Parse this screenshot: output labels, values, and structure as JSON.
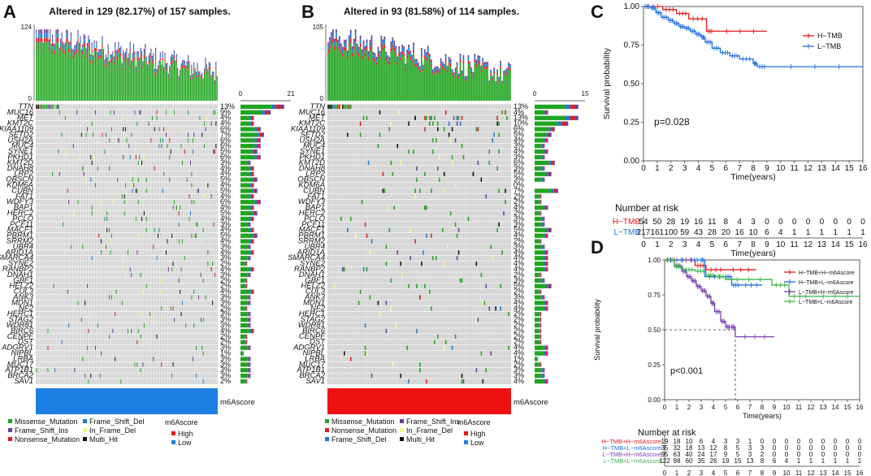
{
  "panels": {
    "a": {
      "letter": "A",
      "title": "Altered in 129 (82.17%) of 157 samples.",
      "top_max": "124",
      "side_axis": [
        "0",
        "21"
      ],
      "group_label": "m6Ascore",
      "group_color": "#1a7fe0",
      "genes": [
        "TTN",
        "MUC16",
        "MET",
        "KMT2C",
        "KIAA1109",
        "SETD2",
        "USH2A",
        "MUC4",
        "SYNE1",
        "PKHD1",
        "KMT2D",
        "DNAH8",
        "LRP2",
        "OBSCN",
        "KDM6A",
        "CUBN",
        "FAT1",
        "WDFY3",
        "BAP1",
        "HERC2",
        "PCLO",
        "PCF11",
        "MACF1",
        "PBRM1",
        "SRRM2",
        "UBR4",
        "ARID1A",
        "SMARCA4",
        "SYNE2",
        "RANBP2",
        "DNAH1",
        "GBF1",
        "HELZ2",
        "CUL3",
        "ANK3",
        "MDN1",
        "NF2",
        "HERC1",
        "STAG2",
        "WDR81",
        "BIRC6",
        "CENPF",
        "DST",
        "ADGRV1",
        "NIPBL",
        "LRBA",
        "MUC17",
        "ATP1B1",
        "BRCA2",
        "SAV1"
      ],
      "percents": [
        "13%",
        "9%",
        "4%",
        "4%",
        "6%",
        "7%",
        "6%",
        "6%",
        "5%",
        "6%",
        "3%",
        "4%",
        "4%",
        "5%",
        "4%",
        "5%",
        "4%",
        "6%",
        "4%",
        "5%",
        "4%",
        "3%",
        "4%",
        "5%",
        "4%",
        "3%",
        "4%",
        "3%",
        "2%",
        "4%",
        "3%",
        "2%",
        "2%",
        "4%",
        "3%",
        "3%",
        "2%",
        "3%",
        "3%",
        "3%",
        "4%",
        "2%",
        "2%",
        "3%",
        "1%",
        "3%",
        "3%",
        "3%",
        "3%",
        "2%"
      ]
    },
    "b": {
      "letter": "B",
      "title": "Altered in 93 (81.58%) of 114 samples.",
      "top_max": "105",
      "side_axis": [
        "0",
        "15"
      ],
      "group_label": "m6Ascore",
      "group_color": "#ee1111",
      "genes": [
        "TTN",
        "MUC16",
        "MET",
        "KMT2C",
        "KIAA1109",
        "SETD2",
        "USH2A",
        "MUC4",
        "SYNE1",
        "PKHD1",
        "KMT2D",
        "DNAH8",
        "LRP2",
        "OBSCN",
        "KDM6A",
        "CUBN",
        "FAT1",
        "WDFY3",
        "BAP1",
        "HERC2",
        "PCLO",
        "PCF11",
        "MACF1",
        "PBRM1",
        "SRRM2",
        "UBR4",
        "ARID1A",
        "SMARCA4",
        "SYNE2",
        "RANBP2",
        "DNAH1",
        "GBF1",
        "HELZ2",
        "CUL3",
        "ANK3",
        "MDN1",
        "NF2",
        "HERC1",
        "STAG2",
        "WDR81",
        "BIRC6",
        "CENPF",
        "DST",
        "ADGRV1",
        "NIPBL",
        "LRBA",
        "MUC17",
        "ATP1B1",
        "BRCA2",
        "SAV1"
      ],
      "percents": [
        "13%",
        "4%",
        "13%",
        "10%",
        "6%",
        "5%",
        "4%",
        "3%",
        "4%",
        "3%",
        "6%",
        "3%",
        "5%",
        "3%",
        "0%",
        "7%",
        "2%",
        "2%",
        "4%",
        "2%",
        "3%",
        "3%",
        "5%",
        "4%",
        "2%",
        "3%",
        "4%",
        "4%",
        "4%",
        "4%",
        "2%",
        "3%",
        "5%",
        "2%",
        "3%",
        "4%",
        "4%",
        "2%",
        "2%",
        "2%",
        "2%",
        "2%",
        "2%",
        "4%",
        "4%",
        "1%",
        "2%",
        "3%",
        "3%",
        "4%"
      ]
    },
    "c": {
      "letter": "C"
    },
    "d": {
      "letter": "D"
    }
  },
  "legends": {
    "a": {
      "mutation_types": [
        "Missense_Mutation",
        "Frame_Shift_Del",
        "Frame_Shift_Ins",
        "In_Frame_Del",
        "Nonsense_Mutation",
        "Multi_Hit"
      ],
      "group_title": "m6Ascore",
      "group_items": [
        "High",
        "Low"
      ]
    },
    "b": {
      "mutation_types": [
        "Missense_Mutation",
        "Frame_Shift_Ins",
        "Nonsense_Mutation",
        "In_Frame_Del",
        "Frame_Shift_Del",
        "Multi_Hit"
      ],
      "group_title": "m6Ascore",
      "group_items": [
        "High",
        "Low"
      ]
    }
  },
  "colors": {
    "missense": "#1fa51f",
    "frame_shift_del": "#1f78c8",
    "frame_shift_ins": "#6a3d9a",
    "in_frame_del": "#f5f58a",
    "nonsense": "#e31a1c",
    "multi_hit": "#111111",
    "background": "#cfcfcf",
    "high": "#ee1111",
    "low": "#1a7fe0",
    "h_tmb": "#e31a1c",
    "l_tmb": "#1f6fe0",
    "d_hh": "#e31a1c",
    "d_hl": "#1f6fe0",
    "d_lh": "#7b3fb0",
    "d_ll": "#3cb34a"
  },
  "chart_data": [
    {
      "type": "heatmap",
      "title": "Altered in 129 (82.17%) of 157 samples.",
      "samples": 157,
      "altered": 129,
      "top_axis_max": 124,
      "side_axis_max": 21,
      "rows": "genes listed in panels.a.genes",
      "group": "m6Ascore Low"
    },
    {
      "type": "heatmap",
      "title": "Altered in 93 (81.58%) of 114 samples.",
      "samples": 114,
      "altered": 93,
      "top_axis_max": 105,
      "side_axis_max": 15,
      "rows": "genes listed in panels.b.genes",
      "group": "m6Ascore High"
    },
    {
      "type": "line",
      "title": "",
      "xlabel": "Time(years)",
      "ylabel": "Survival probability",
      "xlim": [
        0,
        16
      ],
      "ylim": [
        0,
        1
      ],
      "x_ticks": [
        "0",
        "1",
        "2",
        "3",
        "4",
        "5",
        "6",
        "7",
        "8",
        "9",
        "10",
        "11",
        "12",
        "13",
        "14",
        "15",
        "16"
      ],
      "y_ticks": [
        "0.00",
        "0.25",
        "0.50",
        "0.75",
        "1.00"
      ],
      "annotation": "p=0.028",
      "series": [
        {
          "name": "H−TMB",
          "x": [
            0,
            1.4,
            2.4,
            3.3,
            4.6,
            5.1,
            9.0
          ],
          "y": [
            1.0,
            0.98,
            0.955,
            0.92,
            0.84,
            0.84,
            0.84
          ]
        },
        {
          "name": "L−TMB",
          "x": [
            0,
            0.5,
            0.9,
            1.3,
            1.8,
            2.2,
            2.6,
            3.0,
            3.4,
            3.8,
            4.2,
            4.5,
            5.0,
            5.6,
            6.3,
            7.0,
            8.0,
            8.3,
            9.0,
            16.0
          ],
          "y": [
            1.0,
            0.99,
            0.96,
            0.93,
            0.91,
            0.89,
            0.87,
            0.86,
            0.84,
            0.82,
            0.8,
            0.77,
            0.73,
            0.7,
            0.68,
            0.66,
            0.63,
            0.61,
            0.61,
            0.61
          ]
        }
      ],
      "risk_table": {
        "title": "Number at risk",
        "rows": [
          {
            "name": "H−TMB",
            "values": [
              "54",
              "50",
              "28",
              "19",
              "16",
              "11",
              "8",
              "4",
              "3",
              "0",
              "0",
              "0",
              "0",
              "0",
              "0",
              "0",
              "0"
            ]
          },
          {
            "name": "L−TMB",
            "values": [
              "217",
              "161",
              "100",
              "59",
              "43",
              "28",
              "20",
              "16",
              "10",
              "6",
              "4",
              "1",
              "1",
              "1",
              "1",
              "1",
              "1"
            ]
          }
        ],
        "xlabel": "Time(years)"
      }
    },
    {
      "type": "line",
      "xlabel": "Time(years)",
      "ylabel": "Survival probability",
      "xlim": [
        0,
        16
      ],
      "ylim": [
        0,
        1
      ],
      "x_ticks": [
        "0",
        "1",
        "2",
        "3",
        "4",
        "5",
        "6",
        "7",
        "8",
        "9",
        "10",
        "11",
        "12",
        "13",
        "14",
        "15",
        "16"
      ],
      "y_ticks": [
        "0.00",
        "0.25",
        "0.50",
        "0.75",
        "1.00"
      ],
      "annotation": "p<0.001",
      "median_line": {
        "x": 5.8,
        "y": 0.5
      },
      "series": [
        {
          "name": "H−TMB+H−m6Ascore",
          "x": [
            0,
            1.0,
            2.5,
            3.4,
            5.0,
            7.5
          ],
          "y": [
            1.0,
            1.0,
            0.96,
            0.93,
            0.93,
            0.93
          ]
        },
        {
          "name": "H−TMB+L−m6Ascore",
          "x": [
            0,
            2.0,
            2.9,
            3.3,
            4.9,
            5.5,
            6.2,
            8.0
          ],
          "y": [
            1.0,
            1.0,
            1.0,
            0.88,
            0.88,
            0.82,
            0.82,
            0.82
          ]
        },
        {
          "name": "L−TMB+H−m6Ascore",
          "x": [
            0,
            0.8,
            1.4,
            1.8,
            2.2,
            2.6,
            3.0,
            3.4,
            3.8,
            4.1,
            4.6,
            5.0,
            5.4,
            5.8,
            9.0
          ],
          "y": [
            1.0,
            0.96,
            0.92,
            0.88,
            0.85,
            0.81,
            0.78,
            0.74,
            0.69,
            0.63,
            0.56,
            0.52,
            0.52,
            0.45,
            0.45
          ]
        },
        {
          "name": "L−TMB+L−m6Ascore",
          "x": [
            0,
            0.8,
            1.5,
            2.5,
            3.4,
            4.2,
            5.0,
            8.8,
            10.2,
            12.0,
            16.0
          ],
          "y": [
            1.0,
            0.95,
            0.93,
            0.92,
            0.89,
            0.88,
            0.86,
            0.82,
            0.74,
            0.74,
            0.74
          ]
        }
      ],
      "risk_table": {
        "title": "Number at risk",
        "rows": [
          {
            "name": "H−TMB+H−m6Ascore",
            "values": [
              "19",
              "18",
              "10",
              "6",
              "4",
              "3",
              "3",
              "1",
              "0",
              "0",
              "0",
              "0",
              "0",
              "0",
              "0",
              "0",
              "0"
            ]
          },
          {
            "name": "H−TMB+L−m6Ascore",
            "values": [
              "35",
              "32",
              "18",
              "13",
              "12",
              "8",
              "5",
              "3",
              "3",
              "0",
              "0",
              "0",
              "0",
              "0",
              "0",
              "0",
              "0"
            ]
          },
          {
            "name": "L−TMB+H−m6Ascore",
            "values": [
              "95",
              "63",
              "40",
              "24",
              "17",
              "9",
              "5",
              "3",
              "2",
              "0",
              "0",
              "0",
              "0",
              "0",
              "0",
              "0",
              "0"
            ]
          },
          {
            "name": "L−TMB+L−m6Ascore",
            "values": [
              "122",
              "98",
              "60",
              "35",
              "26",
              "19",
              "15",
              "13",
              "8",
              "6",
              "4",
              "1",
              "1",
              "1",
              "1",
              "1",
              "1"
            ]
          }
        ],
        "xlabel": "Time(years)"
      }
    }
  ]
}
